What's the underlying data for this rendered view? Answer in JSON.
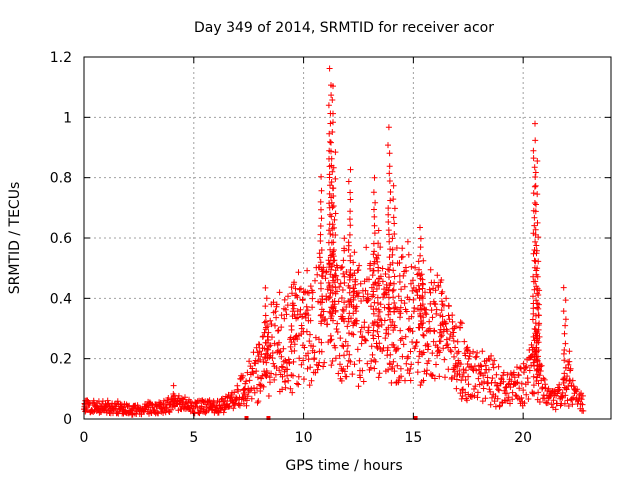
{
  "chart_data": {
    "type": "scatter",
    "title": "Day 349 of 2014, SRMTID for receiver acor",
    "xlabel": "GPS time / hours",
    "ylabel": "SRMTID / TECUs",
    "xlim": [
      0,
      24
    ],
    "ylim": [
      0,
      1.2
    ],
    "xticks": [
      "0",
      "5",
      "10",
      "15",
      "20"
    ],
    "xtick_values": [
      0,
      5,
      10,
      15,
      20
    ],
    "yticks": [
      "0",
      "0.2",
      "0.4",
      "0.6",
      "0.8",
      "1",
      "1.2"
    ],
    "ytick_values": [
      0,
      0.2,
      0.4,
      0.6,
      0.8,
      1.0,
      1.2
    ],
    "grid": true,
    "marker": "+",
    "series_color": "#ff0000",
    "series": [
      {
        "name": "SRMTID",
        "envelope": [
          [
            0.0,
            0.04
          ],
          [
            0.5,
            0.04
          ],
          [
            1.0,
            0.04
          ],
          [
            1.5,
            0.04
          ],
          [
            2.0,
            0.03
          ],
          [
            2.5,
            0.03
          ],
          [
            3.0,
            0.04
          ],
          [
            3.5,
            0.04
          ],
          [
            4.0,
            0.05
          ],
          [
            4.5,
            0.05
          ],
          [
            5.0,
            0.04
          ],
          [
            5.5,
            0.04
          ],
          [
            6.0,
            0.04
          ],
          [
            6.5,
            0.05
          ],
          [
            7.0,
            0.08
          ],
          [
            7.5,
            0.12
          ],
          [
            8.0,
            0.16
          ],
          [
            8.5,
            0.22
          ],
          [
            9.0,
            0.24
          ],
          [
            9.5,
            0.25
          ],
          [
            10.0,
            0.3
          ],
          [
            10.5,
            0.3
          ],
          [
            11.0,
            0.34
          ],
          [
            11.5,
            0.33
          ],
          [
            12.0,
            0.32
          ],
          [
            12.5,
            0.3
          ],
          [
            13.0,
            0.33
          ],
          [
            13.5,
            0.32
          ],
          [
            14.0,
            0.3
          ],
          [
            14.5,
            0.34
          ],
          [
            15.0,
            0.32
          ],
          [
            15.5,
            0.29
          ],
          [
            16.0,
            0.28
          ],
          [
            16.5,
            0.24
          ],
          [
            17.0,
            0.2
          ],
          [
            17.5,
            0.15
          ],
          [
            18.0,
            0.14
          ],
          [
            18.5,
            0.13
          ],
          [
            19.0,
            0.1
          ],
          [
            19.5,
            0.1
          ],
          [
            20.0,
            0.11
          ],
          [
            20.5,
            0.18
          ],
          [
            21.0,
            0.08
          ],
          [
            21.5,
            0.06
          ],
          [
            22.0,
            0.12
          ],
          [
            22.5,
            0.06
          ],
          [
            23.0,
            0.05
          ]
        ],
        "spikes": [
          [
            0.0,
            0.08
          ],
          [
            4.1,
            0.11
          ],
          [
            7.3,
            0.09
          ],
          [
            8.3,
            0.44
          ],
          [
            9.5,
            0.45
          ],
          [
            10.8,
            0.8
          ],
          [
            11.2,
            1.16
          ],
          [
            11.3,
            1.1
          ],
          [
            11.4,
            0.88
          ],
          [
            11.8,
            0.6
          ],
          [
            12.1,
            0.83
          ],
          [
            12.3,
            0.55
          ],
          [
            13.2,
            0.8
          ],
          [
            13.4,
            0.62
          ],
          [
            13.9,
            0.96
          ],
          [
            14.1,
            0.78
          ],
          [
            14.4,
            0.46
          ],
          [
            15.3,
            0.64
          ],
          [
            15.4,
            0.52
          ],
          [
            16.3,
            0.42
          ],
          [
            20.5,
            0.98
          ],
          [
            20.6,
            0.86
          ],
          [
            20.65,
            0.6
          ],
          [
            20.7,
            0.42
          ],
          [
            21.9,
            0.43
          ],
          [
            22.1,
            0.22
          ]
        ],
        "zero_points": [
          7.4,
          8.4,
          15.1
        ]
      }
    ]
  }
}
